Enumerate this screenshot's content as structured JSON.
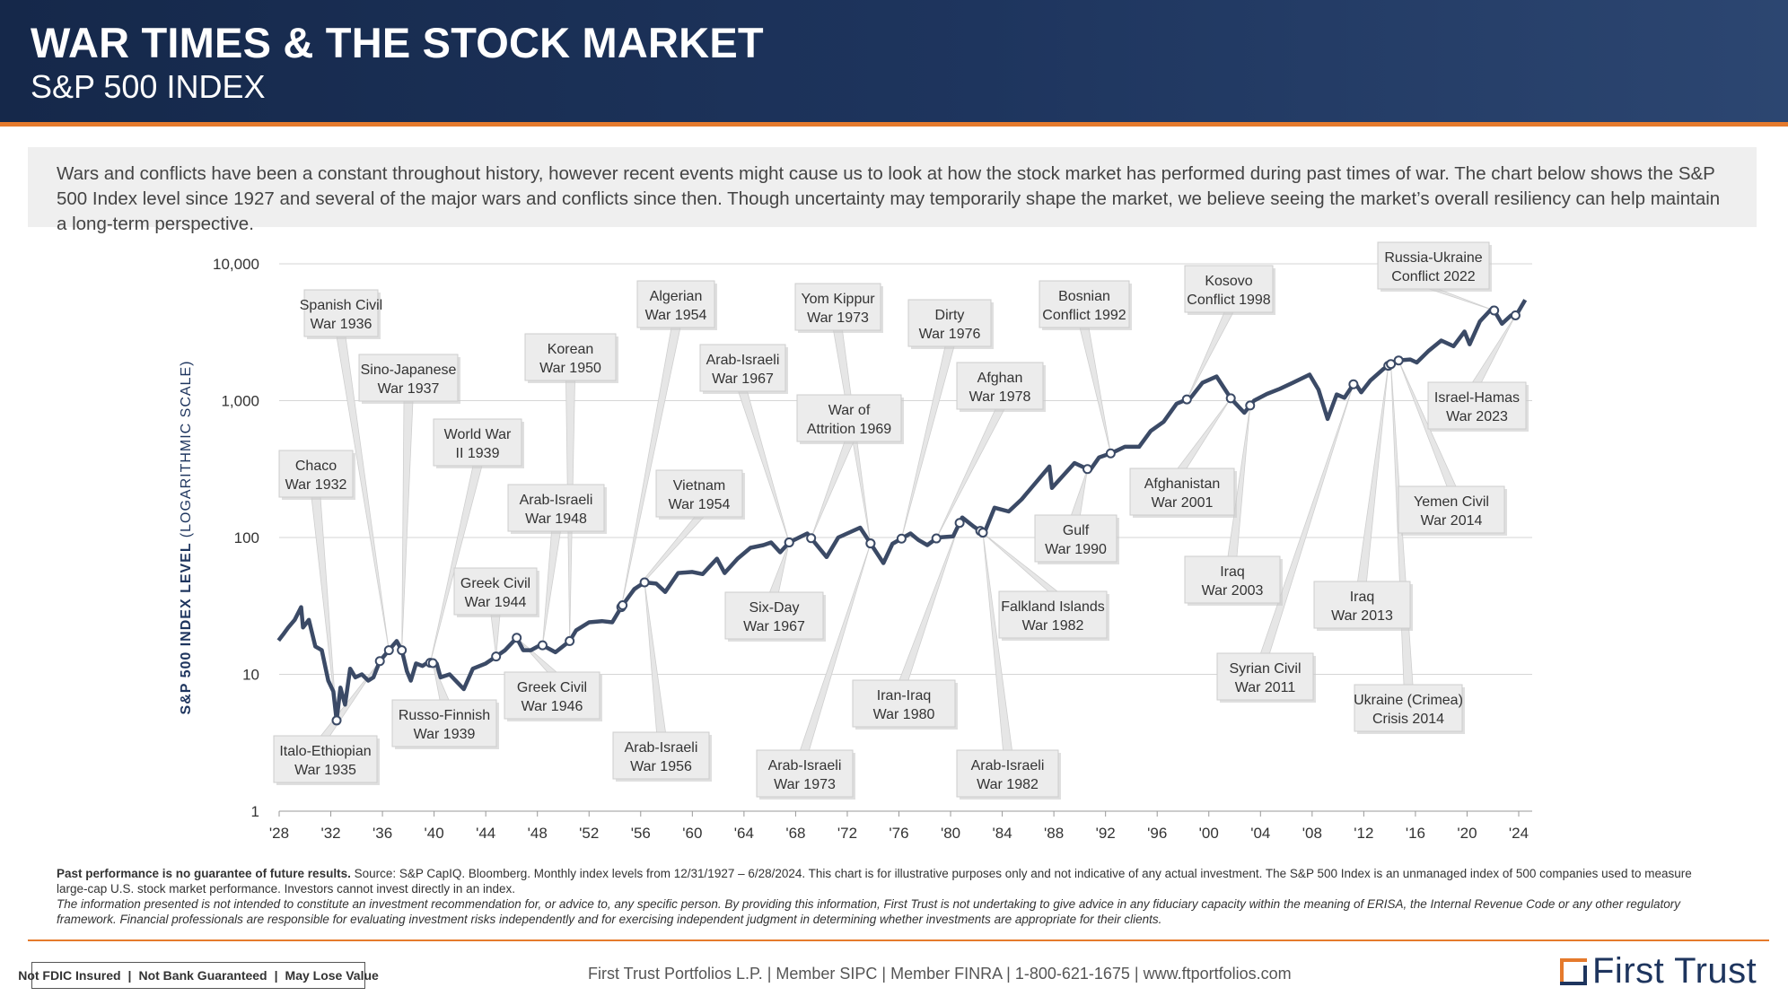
{
  "header": {
    "title": "WAR TIMES & THE STOCK MARKET",
    "subtitle": "S&P 500 INDEX"
  },
  "intro": "Wars and conflicts have been a constant throughout history, however recent events might cause us to look at how the stock market has performed during past times of war. The chart below shows the S&P 500 Index level since 1927 and several of the major wars and conflicts since then. Though uncertainty may temporarily shape the market, we believe seeing the market’s overall resiliency can help maintain a long-term perspective.",
  "chart_data": {
    "type": "line",
    "title": "",
    "xlabel": "",
    "ylabel_main": "S&P 500 INDEX LEVEL",
    "ylabel_sub": "(LOGARITHMIC SCALE)",
    "yscale": "log",
    "ylim": [
      1,
      10000
    ],
    "xlim": [
      1927.9,
      2024.5
    ],
    "y_ticks": [
      {
        "value": 1,
        "label": "1"
      },
      {
        "value": 10,
        "label": "10"
      },
      {
        "value": 100,
        "label": "100"
      },
      {
        "value": 1000,
        "label": "1,000"
      },
      {
        "value": 10000,
        "label": "10,000"
      }
    ],
    "x_ticks": [
      {
        "value": 1928,
        "label": "'28"
      },
      {
        "value": 1932,
        "label": "'32"
      },
      {
        "value": 1936,
        "label": "'36"
      },
      {
        "value": 1940,
        "label": "'40"
      },
      {
        "value": 1944,
        "label": "'44"
      },
      {
        "value": 1948,
        "label": "'48"
      },
      {
        "value": 1952,
        "label": "'52"
      },
      {
        "value": 1956,
        "label": "'56"
      },
      {
        "value": 1960,
        "label": "'60"
      },
      {
        "value": 1964,
        "label": "'64"
      },
      {
        "value": 1968,
        "label": "'68"
      },
      {
        "value": 1972,
        "label": "'72"
      },
      {
        "value": 1976,
        "label": "'76"
      },
      {
        "value": 1980,
        "label": "'80"
      },
      {
        "value": 1984,
        "label": "'84"
      },
      {
        "value": 1988,
        "label": "'88"
      },
      {
        "value": 1992,
        "label": "'92"
      },
      {
        "value": 1996,
        "label": "'96"
      },
      {
        "value": 2000,
        "label": "'00"
      },
      {
        "value": 2004,
        "label": "'04"
      },
      {
        "value": 2008,
        "label": "'08"
      },
      {
        "value": 2012,
        "label": "'12"
      },
      {
        "value": 2016,
        "label": "'16"
      },
      {
        "value": 2020,
        "label": "'20"
      },
      {
        "value": 2024,
        "label": "'24"
      }
    ],
    "series": [
      {
        "name": "S&P 500 Index",
        "points": [
          [
            1927.95,
            17.7
          ],
          [
            1928.3,
            19.5
          ],
          [
            1928.7,
            22
          ],
          [
            1929.2,
            25
          ],
          [
            1929.7,
            31
          ],
          [
            1929.85,
            22
          ],
          [
            1930.3,
            25
          ],
          [
            1930.8,
            16
          ],
          [
            1931.3,
            15
          ],
          [
            1931.8,
            9
          ],
          [
            1932.2,
            7.5
          ],
          [
            1932.45,
            4.6
          ],
          [
            1932.75,
            8
          ],
          [
            1933.1,
            6
          ],
          [
            1933.5,
            11
          ],
          [
            1933.9,
            9.5
          ],
          [
            1934.4,
            10
          ],
          [
            1934.9,
            9
          ],
          [
            1935.3,
            9.5
          ],
          [
            1935.8,
            12.5
          ],
          [
            1936.5,
            15
          ],
          [
            1937.1,
            17.5
          ],
          [
            1937.5,
            15
          ],
          [
            1937.9,
            10.5
          ],
          [
            1938.2,
            9
          ],
          [
            1938.6,
            12
          ],
          [
            1939.1,
            11.5
          ],
          [
            1939.5,
            12.2
          ],
          [
            1940.2,
            12
          ],
          [
            1940.5,
            9.5
          ],
          [
            1941.2,
            10
          ],
          [
            1942.3,
            7.8
          ],
          [
            1943,
            11
          ],
          [
            1944,
            12
          ],
          [
            1944.8,
            13.5
          ],
          [
            1945.5,
            15
          ],
          [
            1946.4,
            18.5
          ],
          [
            1946.9,
            15
          ],
          [
            1947.5,
            15
          ],
          [
            1948.3,
            16.5
          ],
          [
            1949.4,
            14.5
          ],
          [
            1950.5,
            17.5
          ],
          [
            1951,
            21
          ],
          [
            1952,
            24
          ],
          [
            1953,
            24.5
          ],
          [
            1953.8,
            24
          ],
          [
            1954.5,
            31
          ],
          [
            1955.5,
            42
          ],
          [
            1956.3,
            47
          ],
          [
            1957.2,
            46
          ],
          [
            1957.9,
            40
          ],
          [
            1958.9,
            55
          ],
          [
            1960,
            56
          ],
          [
            1960.8,
            54
          ],
          [
            1961.9,
            70
          ],
          [
            1962.5,
            55
          ],
          [
            1963.5,
            70
          ],
          [
            1964.5,
            84
          ],
          [
            1965.5,
            88
          ],
          [
            1966.1,
            92
          ],
          [
            1966.8,
            78
          ],
          [
            1967.5,
            92
          ],
          [
            1968.9,
            107
          ],
          [
            1970.4,
            72
          ],
          [
            1971.3,
            100
          ],
          [
            1973,
            118
          ],
          [
            1974.8,
            65
          ],
          [
            1975.5,
            90
          ],
          [
            1976.9,
            107
          ],
          [
            1977.5,
            96
          ],
          [
            1978.2,
            88
          ],
          [
            1979,
            100
          ],
          [
            1980.2,
            102
          ],
          [
            1980.9,
            140
          ],
          [
            1981.8,
            120
          ],
          [
            1982.6,
            107
          ],
          [
            1983.4,
            165
          ],
          [
            1984.5,
            155
          ],
          [
            1985.5,
            190
          ],
          [
            1987.65,
            330
          ],
          [
            1987.85,
            230
          ],
          [
            1989.6,
            350
          ],
          [
            1990.8,
            310
          ],
          [
            1991.5,
            385
          ],
          [
            1992.5,
            415
          ],
          [
            1993.5,
            460
          ],
          [
            1994.6,
            460
          ],
          [
            1995.5,
            600
          ],
          [
            1996.5,
            700
          ],
          [
            1997.5,
            950
          ],
          [
            1998.6,
            1050
          ],
          [
            1999.5,
            1350
          ],
          [
            2000.6,
            1500
          ],
          [
            2001.7,
            1040
          ],
          [
            2002.75,
            815
          ],
          [
            2003.5,
            1000
          ],
          [
            2004.5,
            1120
          ],
          [
            2005.5,
            1220
          ],
          [
            2006.5,
            1350
          ],
          [
            2007.8,
            1550
          ],
          [
            2008.5,
            1200
          ],
          [
            2009.2,
            735
          ],
          [
            2009.9,
            1110
          ],
          [
            2010.5,
            1050
          ],
          [
            2011.3,
            1360
          ],
          [
            2011.8,
            1150
          ],
          [
            2012.5,
            1400
          ],
          [
            2013.5,
            1700
          ],
          [
            2014.5,
            1960
          ],
          [
            2015.6,
            2000
          ],
          [
            2016.1,
            1900
          ],
          [
            2017,
            2300
          ],
          [
            2018,
            2750
          ],
          [
            2018.95,
            2500
          ],
          [
            2019.8,
            3200
          ],
          [
            2020.2,
            2580
          ],
          [
            2021,
            3800
          ],
          [
            2021.98,
            4770
          ],
          [
            2022.7,
            3650
          ],
          [
            2023.4,
            4200
          ],
          [
            2023.8,
            4200
          ],
          [
            2024.5,
            5450
          ]
        ]
      }
    ],
    "annotations": [
      {
        "label": "Spanish Civil War 1936",
        "date": 1936.5,
        "value": 15
      },
      {
        "label": "Sino-Japanese War 1937",
        "date": 1937.5,
        "value": 15
      },
      {
        "label": "World War II 1939",
        "date": 1939.7,
        "value": 12
      },
      {
        "label": "Chaco War 1932",
        "date": 1932.45,
        "value": 4.6
      },
      {
        "label": "Italo-Ethiopian War 1935",
        "date": 1935.8,
        "value": 10
      },
      {
        "label": "Russo-Finnish War 1939",
        "date": 1939.9,
        "value": 11.5
      },
      {
        "label": "Greek Civil War 1944",
        "date": 1944.8,
        "value": 12
      },
      {
        "label": "Greek Civil War 1946",
        "date": 1946.4,
        "value": 15.5
      },
      {
        "label": "Korean War 1950",
        "date": 1950.5,
        "value": 17.5
      },
      {
        "label": "Arab-Israeli War 1948",
        "date": 1948.4,
        "value": 15
      },
      {
        "label": "Algerian War 1954",
        "date": 1954.5,
        "value": 28
      },
      {
        "label": "Vietnam War 1954",
        "date": 1954.6,
        "value": 30
      },
      {
        "label": "Arab-Israeli War 1956",
        "date": 1956.3,
        "value": 47
      },
      {
        "label": "Arab-Israeli War 1967",
        "date": 1967.5,
        "value": 88
      },
      {
        "label": "Six-Day War 1967",
        "date": 1967.5,
        "value": 90
      },
      {
        "label": "Yom Kippur War 1973",
        "date": 1973.8,
        "value": 110
      },
      {
        "label": "War of Attrition 1969",
        "date": 1969.2,
        "value": 100
      },
      {
        "label": "Arab-Israeli War 1973",
        "date": 1973.8,
        "value": 108
      },
      {
        "label": "Dirty War 1976",
        "date": 1976.2,
        "value": 100
      },
      {
        "label": "Afghan War 1978",
        "date": 1978.9,
        "value": 98
      },
      {
        "label": "Iran-Iraq War 1980",
        "date": 1980.7,
        "value": 120
      },
      {
        "label": "Falkland Islands War 1982",
        "date": 1982.3,
        "value": 115
      },
      {
        "label": "Arab-Israeli War 1982",
        "date": 1982.5,
        "value": 115
      },
      {
        "label": "Bosnian Conflict 1992",
        "date": 1992.4,
        "value": 410
      },
      {
        "label": "Gulf War 1990",
        "date": 1990.6,
        "value": 330
      },
      {
        "label": "Kosovo Conflict 1998",
        "date": 1998.3,
        "value": 1100
      },
      {
        "label": "Afghanistan War 2001",
        "date": 2001.7,
        "value": 1050
      },
      {
        "label": "Iraq War 2003",
        "date": 2003.2,
        "value": 850
      },
      {
        "label": "Syrian Civil War 2011",
        "date": 2011.2,
        "value": 1330
      },
      {
        "label": "Iraq War 2013",
        "date": 2013.9,
        "value": 1800
      },
      {
        "label": "Ukraine (Crimea) Crisis 2014",
        "date": 2014.1,
        "value": 1850
      },
      {
        "label": "Yemen Civil War 2014",
        "date": 2014.7,
        "value": 1950
      },
      {
        "label": "Russia-Ukraine Conflict 2022",
        "date": 2022.1,
        "value": 4600
      },
      {
        "label": "Israel-Hamas War 2023",
        "date": 2023.75,
        "value": 4300
      }
    ]
  },
  "footnotes": {
    "bold": "Past performance is no guarantee of future results.",
    "source": "Source: S&P CapIQ. Bloomberg. Monthly index levels from 12/31/1927 – 6/28/2024. This chart is for illustrative purposes only and not indicative of any actual investment. The S&P 500 Index is an unmanaged index of 500 companies used to measure large-cap U.S. stock market performance. Investors cannot invest directly in an index.",
    "disclaimer": "The information presented is not intended to constitute an investment recommendation for, or advice to, any specific person. By providing this information, First Trust is not undertaking to give advice in any fiduciary capacity within the meaning of ERISA, the Internal Revenue Code or any other regulatory framework. Financial professionals are responsible for evaluating investment risks independently and for exercising independent judgment in determining whether investments are appropriate for their clients."
  },
  "footer": {
    "fdic": [
      "Not FDIC Insured",
      "Not Bank Guaranteed",
      "May Lose Value"
    ],
    "firm": "First Trust Portfolios L.P. | Member SIPC | Member FINRA | 1-800-621-1675 | www.ftportfolios.com",
    "logo": "First Trust"
  },
  "colors": {
    "navy": "#1e355e",
    "orange": "#e57a2c",
    "line": "#3b4a66",
    "grid": "#d6d6d6",
    "callout": "#ececec"
  }
}
